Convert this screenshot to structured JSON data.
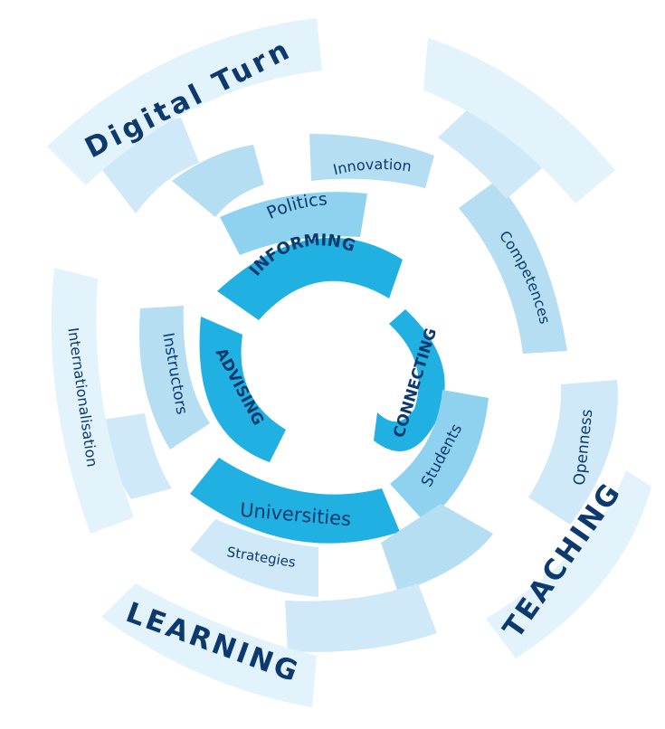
{
  "colors": {
    "core": "#20b0e1",
    "ring2": "#8fd2ef",
    "ring3": "#b5def3",
    "ring4": "#cfe9f8",
    "ring5": "#e3f3fc",
    "text": "#0d3a6e"
  },
  "labels": {
    "informing": "INFORMING",
    "connecting": "CONNECTING",
    "advising": "ADVISING",
    "politics": "Politics",
    "students": "Students",
    "instructors": "Instructors",
    "universities": "Universities",
    "innovation": "Innovation",
    "competences": "Competences",
    "strategies": "Strategies",
    "openness": "Openness",
    "internationalisation": "Internationalisation",
    "digital_turn": "Digital Turn",
    "teaching": "TEACHING",
    "learning": "LEARNING"
  }
}
